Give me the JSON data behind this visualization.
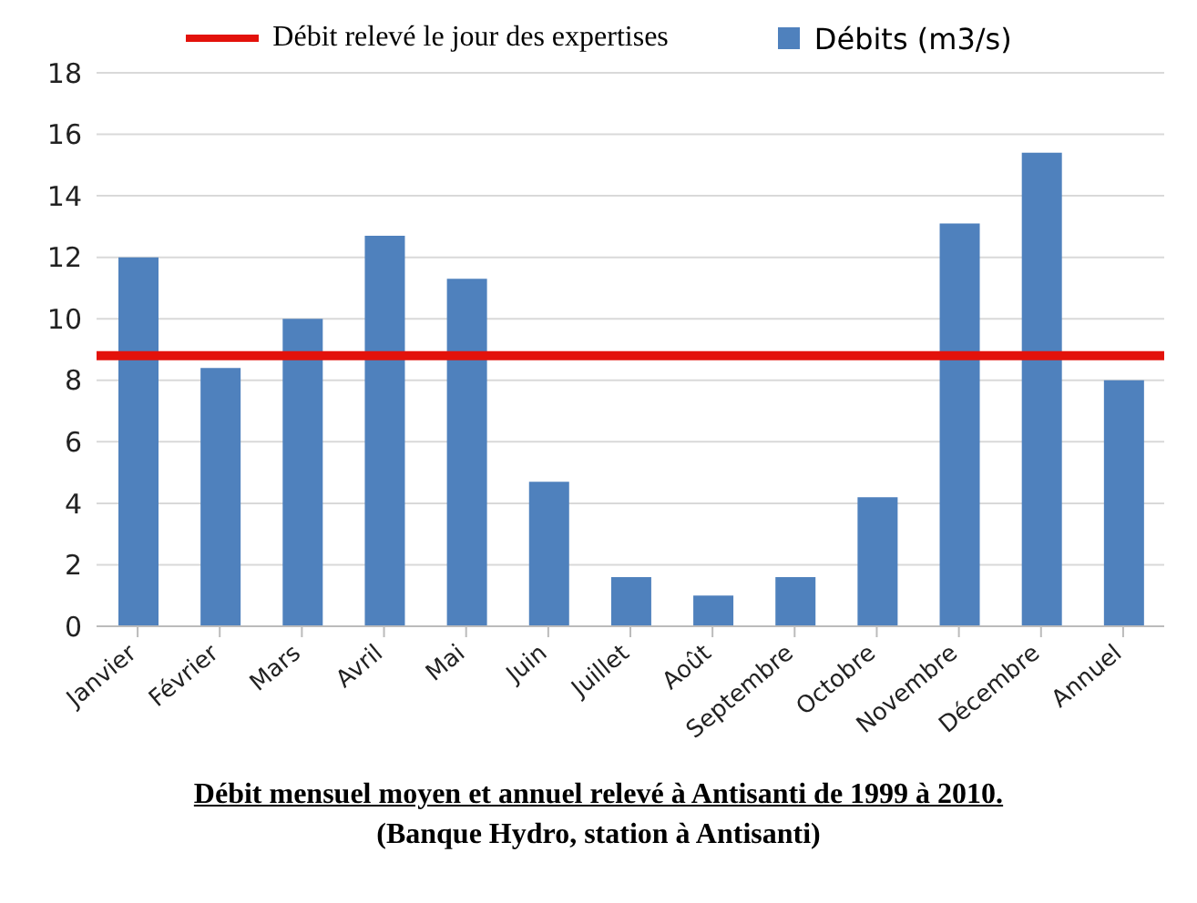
{
  "chart_data": {
    "type": "bar",
    "title": "Débit mensuel moyen et annuel relevé à Antisanti de 1999 à 2010.",
    "subtitle": "(Banque Hydro, station à Antisanti)",
    "categories": [
      "Janvier",
      "Février",
      "Mars",
      "Avril",
      "Mai",
      "Juin",
      "Juillet",
      "Août",
      "Septembre",
      "Octobre",
      "Novembre",
      "Décembre",
      "Annuel"
    ],
    "series": [
      {
        "name": "Débits (m3/s)",
        "color": "#4f81bd",
        "values": [
          12,
          8.4,
          10,
          12.7,
          11.3,
          4.7,
          1.6,
          1.0,
          1.6,
          4.2,
          13.1,
          15.4,
          8.0
        ]
      }
    ],
    "ref_lines": [
      {
        "axis": "y",
        "value": 8.8,
        "label": "Débit relevé le jour des expertises",
        "color": "#e3120b"
      }
    ],
    "ylim": [
      0,
      18
    ],
    "yticks": [
      0,
      2,
      4,
      6,
      8,
      10,
      12,
      14,
      16,
      18
    ],
    "grid": "y",
    "legend": "top"
  }
}
